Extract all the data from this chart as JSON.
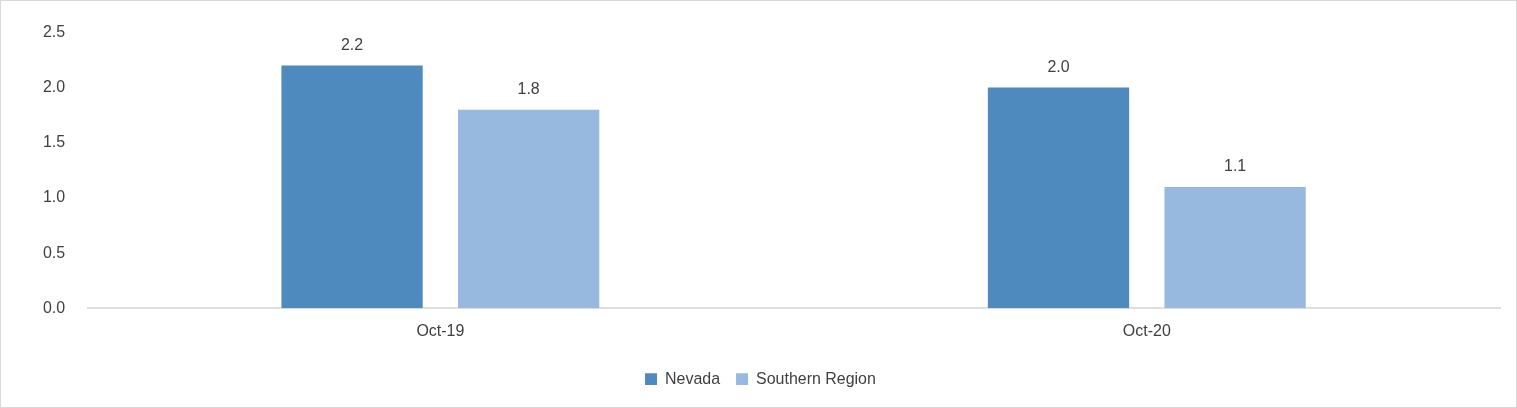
{
  "chart_data": {
    "type": "bar",
    "categories": [
      "Oct-19",
      "Oct-20"
    ],
    "series": [
      {
        "name": "Nevada",
        "color": "#4f8abe",
        "values": [
          2.2,
          2.0
        ],
        "value_labels": [
          "2.2",
          "2.0"
        ]
      },
      {
        "name": "Southern Region",
        "color": "#98b9df",
        "values": [
          1.8,
          1.1
        ],
        "value_labels": [
          "1.8",
          "1.1"
        ]
      }
    ],
    "ylim": [
      0,
      2.5
    ],
    "yticks": [
      {
        "value": 0,
        "label": "0.0"
      },
      {
        "value": 0.5,
        "label": "0.5"
      },
      {
        "value": 1,
        "label": "1.0"
      },
      {
        "value": 1.5,
        "label": "1.5"
      },
      {
        "value": 2,
        "label": "2.0"
      },
      {
        "value": 2.5,
        "label": "2.5"
      }
    ],
    "grid": false,
    "legend": "bottom"
  }
}
